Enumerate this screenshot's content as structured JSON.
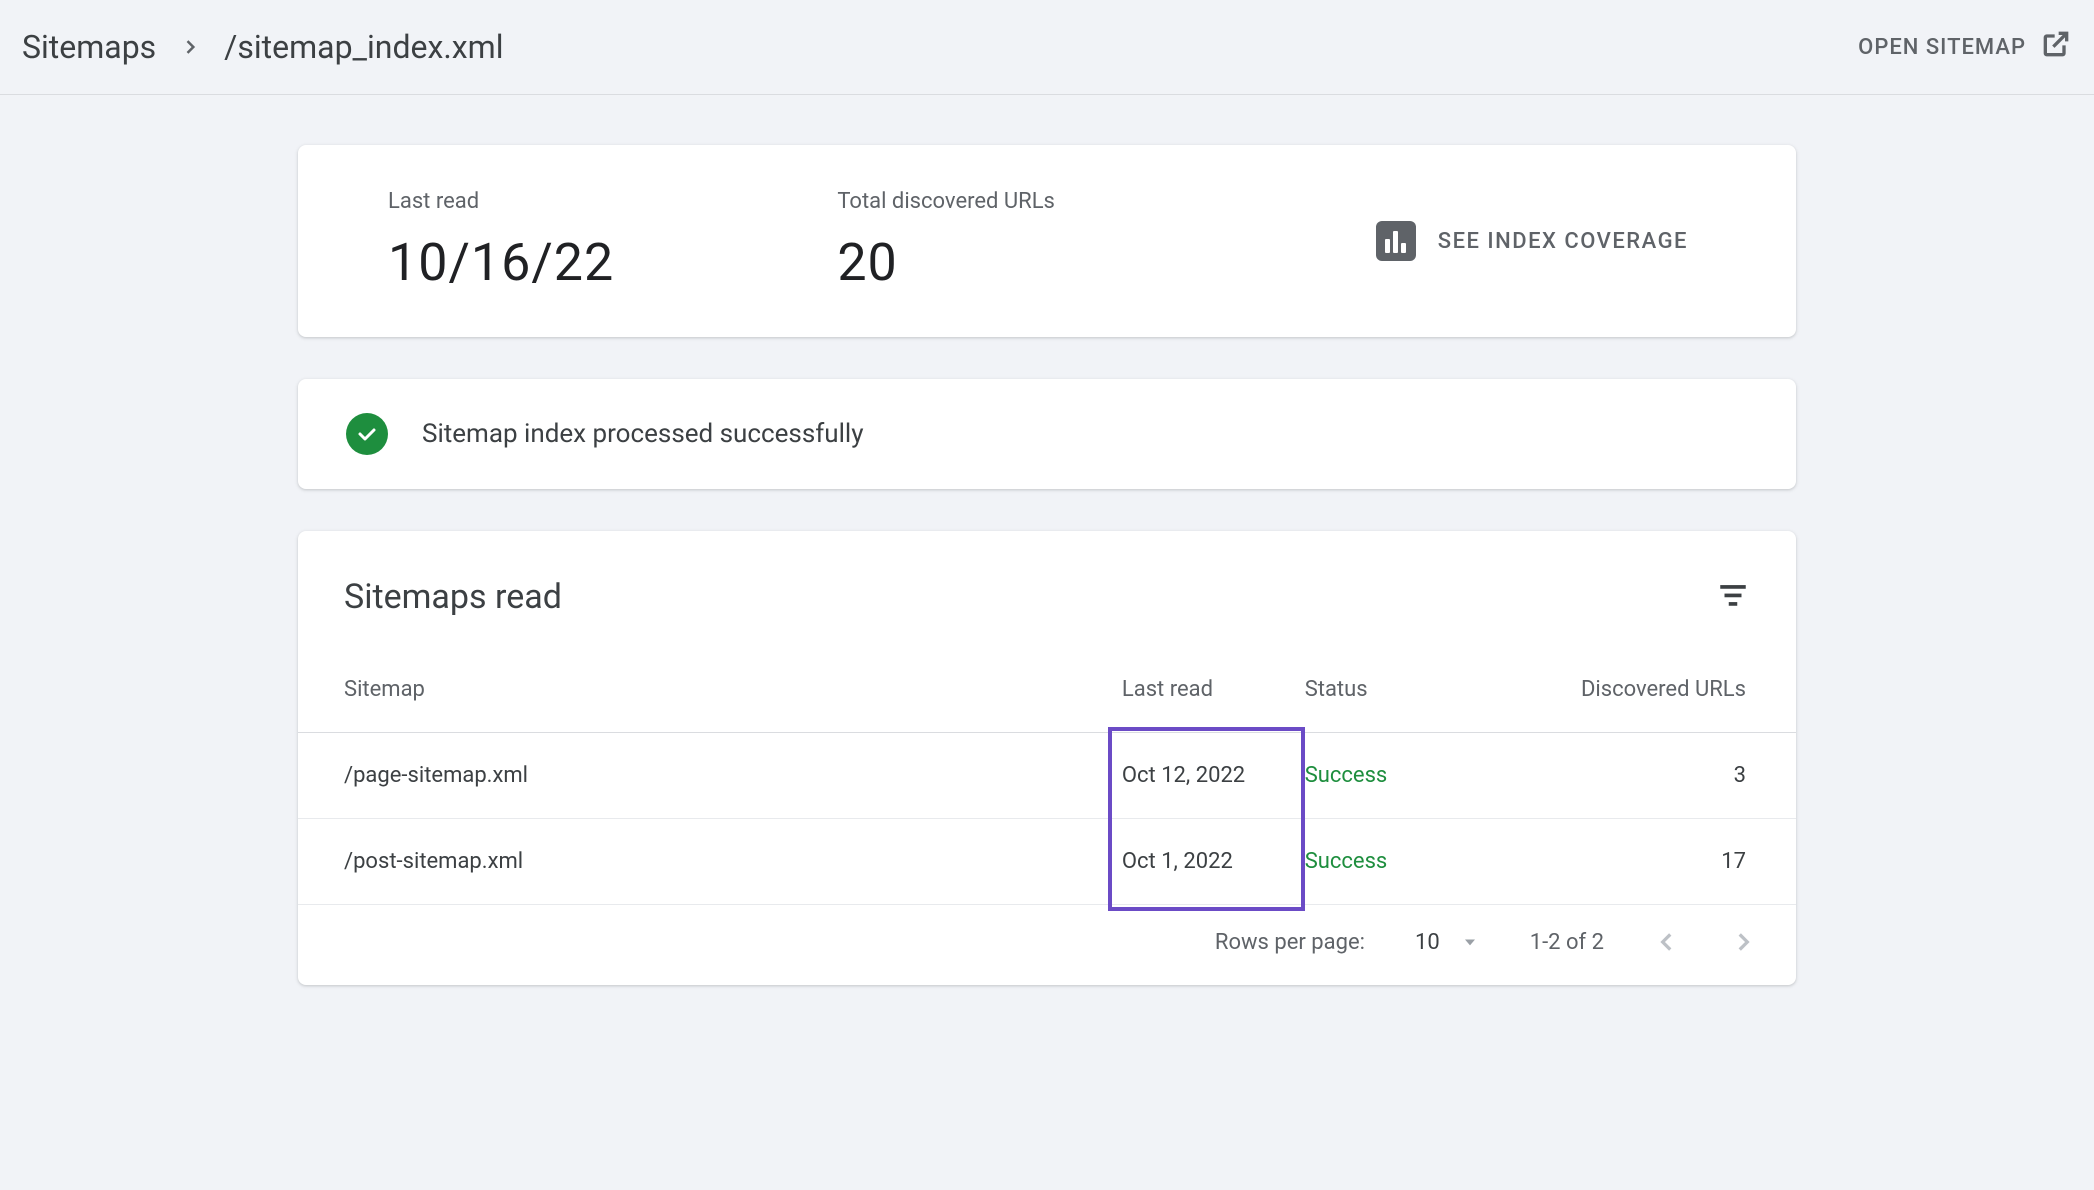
{
  "breadcrumb": {
    "root": "Sitemaps",
    "current": "/sitemap_index.xml"
  },
  "actions": {
    "open_sitemap": "OPEN SITEMAP",
    "see_index_coverage": "SEE INDEX COVERAGE"
  },
  "summary": {
    "last_read_label": "Last read",
    "last_read_value": "10/16/22",
    "total_urls_label": "Total discovered URLs",
    "total_urls_value": "20"
  },
  "status": {
    "message": "Sitemap index processed successfully",
    "color": "#1e8e3e"
  },
  "table": {
    "title": "Sitemaps read",
    "columns": {
      "sitemap": "Sitemap",
      "last_read": "Last read",
      "status": "Status",
      "discovered": "Discovered URLs"
    },
    "rows": [
      {
        "sitemap": "/page-sitemap.xml",
        "last_read": "Oct 12, 2022",
        "status": "Success",
        "discovered": "3"
      },
      {
        "sitemap": "/post-sitemap.xml",
        "last_read": "Oct 1, 2022",
        "status": "Success",
        "discovered": "17"
      }
    ],
    "highlight": {
      "color": "#6b4bc6",
      "column": "last_read"
    }
  },
  "pagination": {
    "rows_label": "Rows per page:",
    "rows_value": "10",
    "range": "1-2 of 2"
  }
}
